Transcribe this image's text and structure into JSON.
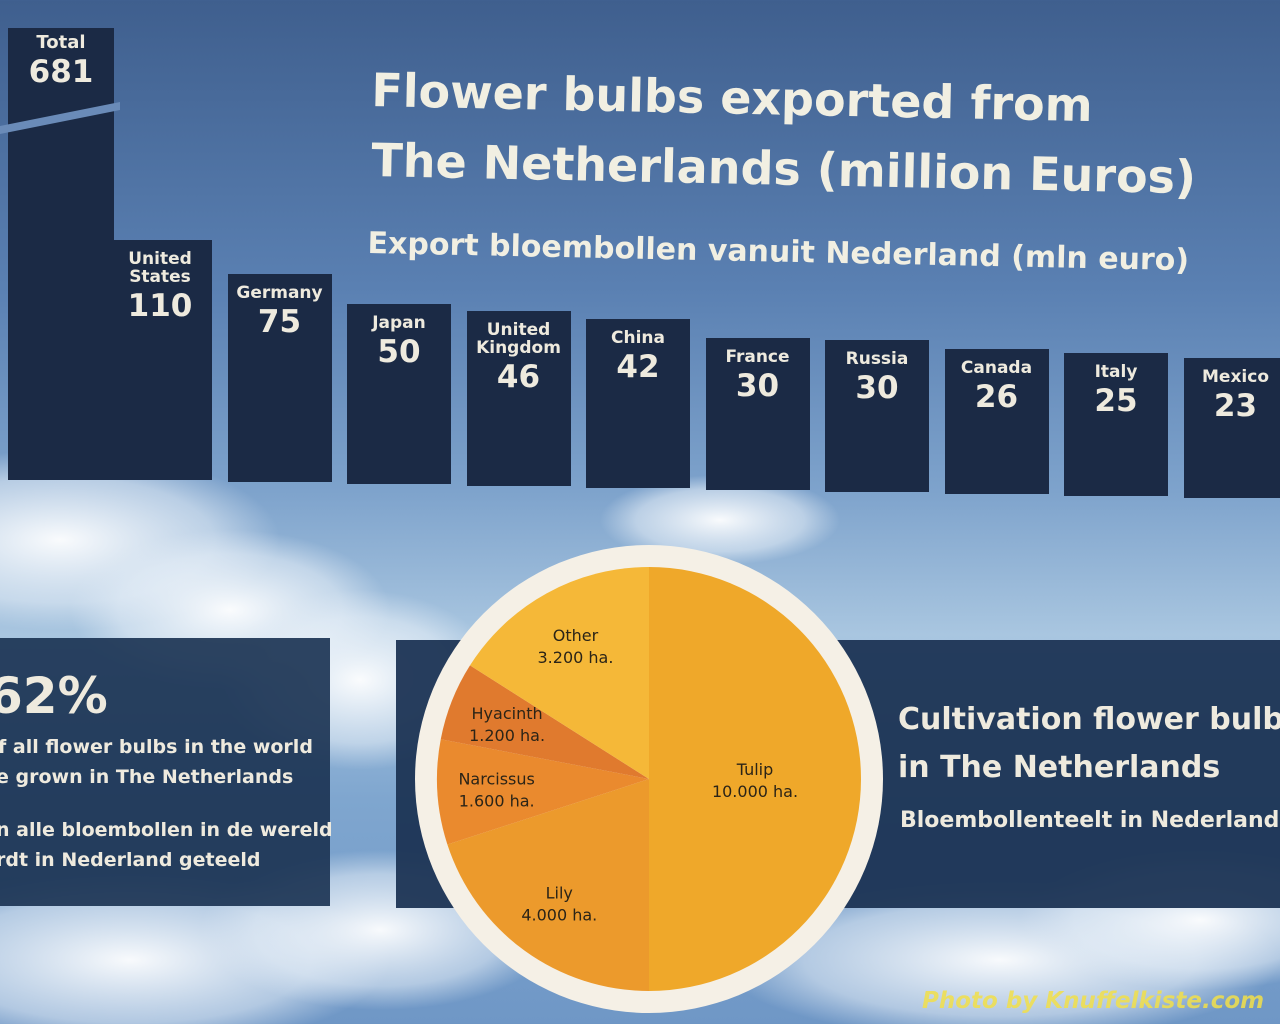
{
  "chart_data": [
    {
      "type": "bar",
      "title": "Flower bulbs exported from The Netherlands (million Euros)",
      "subtitle": "Export bloembollen vanuit Nederland (mln euro)",
      "total": {
        "label": "Total",
        "value": 681
      },
      "categories": [
        "United States",
        "Germany",
        "Japan",
        "United Kingdom",
        "China",
        "France",
        "Russia",
        "Canada",
        "Italy",
        "Mexico"
      ],
      "values": [
        110,
        75,
        50,
        46,
        42,
        30,
        30,
        26,
        25,
        23
      ],
      "color": "#1b2a45"
    },
    {
      "type": "pie",
      "title": "Cultivation flower bulbs in The Netherlands",
      "subtitle": "Bloembollenteelt in Nederland",
      "slices": [
        {
          "label": "Tulip",
          "value": 10000,
          "value_label": "10.000 ha.",
          "color": "#efa82a"
        },
        {
          "label": "Lily",
          "value": 4000,
          "value_label": "4.000 ha.",
          "color": "#ec9a2c"
        },
        {
          "label": "Narcissus",
          "value": 1600,
          "value_label": "1.600 ha.",
          "color": "#ea8a2e"
        },
        {
          "label": "Hyacinth",
          "value": 1200,
          "value_label": "1.200 ha.",
          "color": "#e07a2e"
        },
        {
          "label": "Other",
          "value": 3200,
          "value_label": "3.200 ha.",
          "color": "#f5b838"
        }
      ]
    }
  ],
  "header": {
    "title_line1": "Flower bulbs exported from",
    "title_line2": "The Netherlands (million Euros)",
    "subtitle": "Export bloembollen vanuit Nederland (mln euro)"
  },
  "stat_panel": {
    "percent": "62%",
    "en_line1": "f all flower bulbs in the world",
    "en_line2": "e grown in The Netherlands",
    "nl_line1": "n alle bloembollen in de wereld",
    "nl_line2": "rdt in Nederland geteeld"
  },
  "cultivation_panel": {
    "title_line1": "Cultivation flower bulbs",
    "title_line2": "in The Netherlands",
    "subtitle": "Bloembollenteelt in Nederland"
  },
  "watermark": "Photo by Knuffelkiste.com",
  "colors": {
    "bar": "#1b2a45",
    "panel": "#1c3352",
    "text": "#eeeade",
    "pie_ring": "#f5f0e6"
  }
}
